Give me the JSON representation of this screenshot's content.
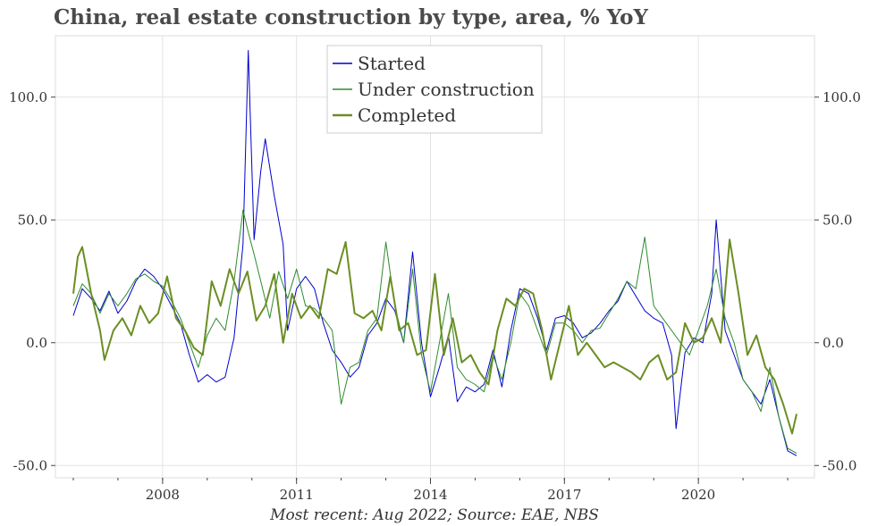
{
  "chart_data": {
    "type": "line",
    "title": "China, real estate construction by type, area, % YoY",
    "footnote": "Most recent: Aug 2022; Source: EAE, NBS",
    "xlabel": "",
    "ylabel": "",
    "x_ticks": [
      "2008",
      "2011",
      "2014",
      "2017",
      "2020"
    ],
    "y_ticks": [
      -50,
      0,
      50,
      100
    ],
    "y_tick_labels": [
      "-50.0",
      "0.0",
      "50.0",
      "100.0"
    ],
    "ylim": [
      -55,
      125
    ],
    "xlim": [
      2005.6,
      2022.6
    ],
    "grid": true,
    "legend_position": "top-center",
    "series": [
      {
        "name": "Started",
        "color": "#0000cc",
        "stroke_width": 1,
        "points": [
          [
            2006.0,
            11
          ],
          [
            2006.2,
            22
          ],
          [
            2006.4,
            18
          ],
          [
            2006.6,
            13
          ],
          [
            2006.8,
            21
          ],
          [
            2007.0,
            12
          ],
          [
            2007.2,
            17
          ],
          [
            2007.4,
            25
          ],
          [
            2007.6,
            30
          ],
          [
            2007.8,
            27
          ],
          [
            2008.0,
            22
          ],
          [
            2008.2,
            15
          ],
          [
            2008.4,
            8
          ],
          [
            2008.6,
            -5
          ],
          [
            2008.8,
            -16
          ],
          [
            2009.0,
            -13
          ],
          [
            2009.2,
            -16
          ],
          [
            2009.4,
            -14
          ],
          [
            2009.6,
            2
          ],
          [
            2009.8,
            40
          ],
          [
            2009.92,
            119
          ],
          [
            2010.05,
            42
          ],
          [
            2010.2,
            70
          ],
          [
            2010.3,
            83
          ],
          [
            2010.5,
            60
          ],
          [
            2010.7,
            40
          ],
          [
            2010.8,
            5
          ],
          [
            2011.0,
            22
          ],
          [
            2011.2,
            27
          ],
          [
            2011.4,
            22
          ],
          [
            2011.6,
            8
          ],
          [
            2011.8,
            -3
          ],
          [
            2012.0,
            -8
          ],
          [
            2012.2,
            -14
          ],
          [
            2012.4,
            -10
          ],
          [
            2012.6,
            3
          ],
          [
            2012.8,
            8
          ],
          [
            2013.0,
            18
          ],
          [
            2013.2,
            13
          ],
          [
            2013.4,
            0
          ],
          [
            2013.6,
            37
          ],
          [
            2013.8,
            0
          ],
          [
            2014.0,
            -22
          ],
          [
            2014.2,
            -10
          ],
          [
            2014.4,
            3
          ],
          [
            2014.6,
            -24
          ],
          [
            2014.8,
            -18
          ],
          [
            2015.0,
            -20
          ],
          [
            2015.2,
            -17
          ],
          [
            2015.4,
            -3
          ],
          [
            2015.6,
            -18
          ],
          [
            2015.8,
            5
          ],
          [
            2016.0,
            22
          ],
          [
            2016.2,
            20
          ],
          [
            2016.4,
            10
          ],
          [
            2016.6,
            -3
          ],
          [
            2016.8,
            10
          ],
          [
            2017.0,
            11
          ],
          [
            2017.2,
            8
          ],
          [
            2017.4,
            2
          ],
          [
            2017.6,
            4
          ],
          [
            2017.8,
            8
          ],
          [
            2018.0,
            13
          ],
          [
            2018.2,
            17
          ],
          [
            2018.4,
            25
          ],
          [
            2018.6,
            19
          ],
          [
            2018.8,
            13
          ],
          [
            2019.0,
            10
          ],
          [
            2019.2,
            8
          ],
          [
            2019.4,
            -5
          ],
          [
            2019.5,
            -35
          ],
          [
            2019.7,
            -4
          ],
          [
            2019.9,
            2
          ],
          [
            2020.1,
            0
          ],
          [
            2020.3,
            20
          ],
          [
            2020.4,
            50
          ],
          [
            2020.6,
            5
          ],
          [
            2020.8,
            -5
          ],
          [
            2021.0,
            -15
          ],
          [
            2021.2,
            -20
          ],
          [
            2021.4,
            -25
          ],
          [
            2021.6,
            -15
          ],
          [
            2021.8,
            -30
          ],
          [
            2022.0,
            -44
          ],
          [
            2022.2,
            -46
          ]
        ]
      },
      {
        "name": "Under construction",
        "color": "#2e8b2e",
        "stroke_width": 1,
        "points": [
          [
            2006.0,
            15
          ],
          [
            2006.2,
            24
          ],
          [
            2006.4,
            20
          ],
          [
            2006.6,
            12
          ],
          [
            2006.8,
            20
          ],
          [
            2007.0,
            15
          ],
          [
            2007.2,
            20
          ],
          [
            2007.4,
            26
          ],
          [
            2007.6,
            28
          ],
          [
            2007.8,
            25
          ],
          [
            2008.0,
            23
          ],
          [
            2008.2,
            17
          ],
          [
            2008.4,
            10
          ],
          [
            2008.6,
            0
          ],
          [
            2008.8,
            -10
          ],
          [
            2009.0,
            3
          ],
          [
            2009.2,
            10
          ],
          [
            2009.4,
            5
          ],
          [
            2009.6,
            25
          ],
          [
            2009.8,
            54
          ],
          [
            2009.92,
            45
          ],
          [
            2010.05,
            36
          ],
          [
            2010.2,
            25
          ],
          [
            2010.4,
            10
          ],
          [
            2010.6,
            29
          ],
          [
            2010.8,
            18
          ],
          [
            2011.0,
            30
          ],
          [
            2011.2,
            15
          ],
          [
            2011.4,
            14
          ],
          [
            2011.6,
            10
          ],
          [
            2011.8,
            5
          ],
          [
            2012.0,
            -25
          ],
          [
            2012.2,
            -10
          ],
          [
            2012.4,
            -8
          ],
          [
            2012.6,
            5
          ],
          [
            2012.8,
            10
          ],
          [
            2013.0,
            41
          ],
          [
            2013.2,
            15
          ],
          [
            2013.4,
            0
          ],
          [
            2013.6,
            30
          ],
          [
            2013.8,
            -5
          ],
          [
            2014.0,
            -20
          ],
          [
            2014.2,
            0
          ],
          [
            2014.4,
            20
          ],
          [
            2014.6,
            -10
          ],
          [
            2014.8,
            -15
          ],
          [
            2015.0,
            -17
          ],
          [
            2015.2,
            -20
          ],
          [
            2015.4,
            -5
          ],
          [
            2015.6,
            -15
          ],
          [
            2015.8,
            0
          ],
          [
            2016.0,
            20
          ],
          [
            2016.2,
            15
          ],
          [
            2016.4,
            5
          ],
          [
            2016.6,
            -5
          ],
          [
            2016.8,
            8
          ],
          [
            2017.0,
            8
          ],
          [
            2017.2,
            5
          ],
          [
            2017.4,
            0
          ],
          [
            2017.6,
            5
          ],
          [
            2017.8,
            6
          ],
          [
            2018.0,
            12
          ],
          [
            2018.2,
            18
          ],
          [
            2018.4,
            25
          ],
          [
            2018.6,
            22
          ],
          [
            2018.8,
            43
          ],
          [
            2019.0,
            15
          ],
          [
            2019.2,
            10
          ],
          [
            2019.4,
            5
          ],
          [
            2019.6,
            0
          ],
          [
            2019.8,
            -5
          ],
          [
            2020.0,
            5
          ],
          [
            2020.2,
            15
          ],
          [
            2020.4,
            30
          ],
          [
            2020.6,
            10
          ],
          [
            2020.8,
            0
          ],
          [
            2021.0,
            -15
          ],
          [
            2021.2,
            -20
          ],
          [
            2021.4,
            -28
          ],
          [
            2021.6,
            -10
          ],
          [
            2021.8,
            -30
          ],
          [
            2022.0,
            -43
          ],
          [
            2022.2,
            -45
          ]
        ]
      },
      {
        "name": "Completed",
        "color": "#6b8e23",
        "stroke_width": 2,
        "points": [
          [
            2006.0,
            20
          ],
          [
            2006.1,
            35
          ],
          [
            2006.2,
            39
          ],
          [
            2006.4,
            20
          ],
          [
            2006.6,
            5
          ],
          [
            2006.7,
            -7
          ],
          [
            2006.9,
            5
          ],
          [
            2007.1,
            10
          ],
          [
            2007.3,
            3
          ],
          [
            2007.5,
            15
          ],
          [
            2007.7,
            8
          ],
          [
            2007.9,
            12
          ],
          [
            2008.1,
            27
          ],
          [
            2008.3,
            10
          ],
          [
            2008.5,
            5
          ],
          [
            2008.7,
            -2
          ],
          [
            2008.9,
            -5
          ],
          [
            2009.1,
            25
          ],
          [
            2009.3,
            15
          ],
          [
            2009.5,
            30
          ],
          [
            2009.7,
            20
          ],
          [
            2009.9,
            29
          ],
          [
            2010.1,
            9
          ],
          [
            2010.3,
            15
          ],
          [
            2010.5,
            28
          ],
          [
            2010.7,
            0
          ],
          [
            2010.9,
            20
          ],
          [
            2011.1,
            10
          ],
          [
            2011.3,
            15
          ],
          [
            2011.5,
            10
          ],
          [
            2011.7,
            30
          ],
          [
            2011.9,
            28
          ],
          [
            2012.1,
            41
          ],
          [
            2012.3,
            12
          ],
          [
            2012.5,
            10
          ],
          [
            2012.7,
            13
          ],
          [
            2012.9,
            5
          ],
          [
            2013.1,
            27
          ],
          [
            2013.3,
            5
          ],
          [
            2013.5,
            8
          ],
          [
            2013.7,
            -5
          ],
          [
            2013.9,
            -3
          ],
          [
            2014.1,
            28
          ],
          [
            2014.3,
            -5
          ],
          [
            2014.5,
            10
          ],
          [
            2014.7,
            -8
          ],
          [
            2014.9,
            -5
          ],
          [
            2015.1,
            -12
          ],
          [
            2015.3,
            -17
          ],
          [
            2015.5,
            5
          ],
          [
            2015.7,
            18
          ],
          [
            2015.9,
            15
          ],
          [
            2016.1,
            22
          ],
          [
            2016.3,
            20
          ],
          [
            2016.5,
            5
          ],
          [
            2016.7,
            -15
          ],
          [
            2016.9,
            0
          ],
          [
            2017.1,
            15
          ],
          [
            2017.3,
            -5
          ],
          [
            2017.5,
            0
          ],
          [
            2017.7,
            -5
          ],
          [
            2017.9,
            -10
          ],
          [
            2018.1,
            -8
          ],
          [
            2018.3,
            -10
          ],
          [
            2018.5,
            -12
          ],
          [
            2018.7,
            -15
          ],
          [
            2018.9,
            -8
          ],
          [
            2019.1,
            -5
          ],
          [
            2019.3,
            -15
          ],
          [
            2019.5,
            -12
          ],
          [
            2019.7,
            8
          ],
          [
            2019.9,
            0
          ],
          [
            2020.1,
            2
          ],
          [
            2020.3,
            10
          ],
          [
            2020.5,
            0
          ],
          [
            2020.7,
            42
          ],
          [
            2020.9,
            20
          ],
          [
            2021.1,
            -5
          ],
          [
            2021.3,
            3
          ],
          [
            2021.5,
            -10
          ],
          [
            2021.7,
            -15
          ],
          [
            2021.9,
            -25
          ],
          [
            2022.1,
            -37
          ],
          [
            2022.2,
            -29
          ]
        ]
      }
    ]
  }
}
